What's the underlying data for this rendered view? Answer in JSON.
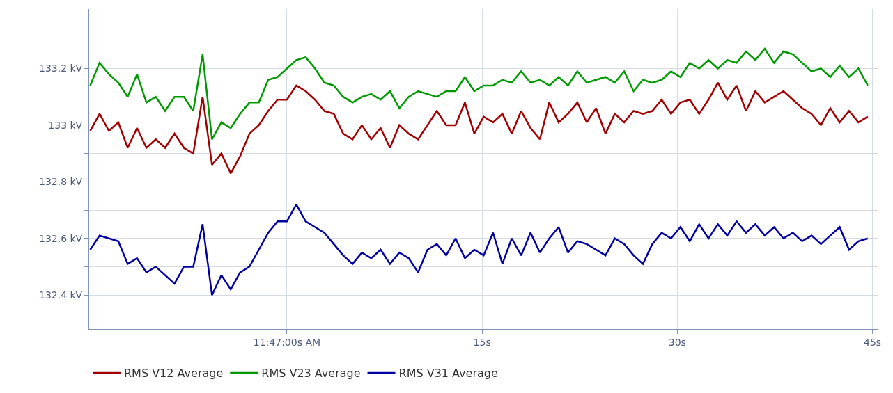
{
  "chart_data": {
    "type": "line",
    "x": [
      -15.12,
      -14.4,
      -13.68,
      -12.96,
      -12.24,
      -11.52,
      -10.8,
      -10.08,
      -9.36,
      -8.64,
      -7.92,
      -7.2,
      -6.48,
      -5.76,
      -5.04,
      -4.32,
      -3.6,
      -2.88,
      -2.16,
      -1.44,
      -0.72,
      0,
      0.72,
      1.44,
      2.16,
      2.88,
      3.6,
      4.32,
      5.04,
      5.76,
      6.48,
      7.2,
      7.92,
      8.64,
      9.36,
      10.08,
      10.8,
      11.52,
      12.24,
      12.96,
      13.68,
      14.4,
      15.12,
      15.84,
      16.56,
      17.28,
      18,
      18.72,
      19.44,
      20.16,
      20.88,
      21.6,
      22.32,
      23.04,
      23.76,
      24.48,
      25.2,
      25.92,
      26.64,
      27.36,
      28.08,
      28.8,
      29.52,
      30.24,
      30.96,
      31.68,
      32.4,
      33.12,
      33.84,
      34.56,
      35.28,
      36,
      36.72,
      37.44,
      38.16,
      38.88,
      39.6,
      40.32,
      41.04,
      41.76,
      42.48,
      43.2,
      43.92,
      44.64
    ],
    "series": [
      {
        "name": "RMS V12 Average",
        "color": "#a00000",
        "values": [
          132.98,
          133.04,
          132.98,
          133.01,
          132.92,
          132.99,
          132.92,
          132.95,
          132.92,
          132.97,
          132.92,
          132.9,
          133.1,
          132.86,
          132.9,
          132.83,
          132.89,
          132.97,
          133.0,
          133.05,
          133.09,
          133.09,
          133.14,
          133.12,
          133.09,
          133.05,
          133.04,
          132.97,
          132.95,
          133.0,
          132.95,
          132.99,
          132.92,
          133.0,
          132.97,
          132.95,
          133.0,
          133.05,
          133.0,
          133.0,
          133.08,
          132.97,
          133.03,
          133.01,
          133.04,
          132.97,
          133.05,
          132.99,
          132.95,
          133.08,
          133.01,
          133.04,
          133.08,
          133.01,
          133.06,
          132.97,
          133.04,
          133.01,
          133.05,
          133.04,
          133.05,
          133.09,
          133.04,
          133.08,
          133.09,
          133.04,
          133.09,
          133.15,
          133.09,
          133.14,
          133.05,
          133.12,
          133.08,
          133.1,
          133.12,
          133.09,
          133.06,
          133.04,
          133.0,
          133.06,
          133.01,
          133.05,
          133.01,
          133.03
        ]
      },
      {
        "name": "RMS V23 Average",
        "color": "#009900",
        "values": [
          133.14,
          133.22,
          133.18,
          133.15,
          133.1,
          133.18,
          133.08,
          133.1,
          133.05,
          133.1,
          133.1,
          133.05,
          133.25,
          132.95,
          133.01,
          132.99,
          133.04,
          133.08,
          133.08,
          133.16,
          133.17,
          133.2,
          133.23,
          133.24,
          133.2,
          133.15,
          133.14,
          133.1,
          133.08,
          133.1,
          133.11,
          133.09,
          133.12,
          133.06,
          133.1,
          133.12,
          133.11,
          133.1,
          133.12,
          133.12,
          133.17,
          133.12,
          133.14,
          133.14,
          133.16,
          133.15,
          133.19,
          133.15,
          133.16,
          133.14,
          133.17,
          133.14,
          133.19,
          133.15,
          133.16,
          133.17,
          133.15,
          133.19,
          133.12,
          133.16,
          133.15,
          133.16,
          133.19,
          133.17,
          133.22,
          133.2,
          133.23,
          133.2,
          133.23,
          133.22,
          133.26,
          133.23,
          133.27,
          133.22,
          133.26,
          133.25,
          133.22,
          133.19,
          133.2,
          133.17,
          133.21,
          133.17,
          133.2,
          133.14
        ]
      },
      {
        "name": "RMS V31 Average",
        "color": "#0000a0",
        "values": [
          132.56,
          132.61,
          132.6,
          132.59,
          132.51,
          132.53,
          132.48,
          132.5,
          132.47,
          132.44,
          132.5,
          132.5,
          132.65,
          132.4,
          132.47,
          132.42,
          132.48,
          132.5,
          132.56,
          132.62,
          132.66,
          132.66,
          132.72,
          132.66,
          132.64,
          132.62,
          132.58,
          132.54,
          132.51,
          132.55,
          132.53,
          132.56,
          132.51,
          132.55,
          132.53,
          132.48,
          132.56,
          132.58,
          132.54,
          132.6,
          132.53,
          132.56,
          132.54,
          132.62,
          132.51,
          132.6,
          132.54,
          132.62,
          132.55,
          132.6,
          132.64,
          132.55,
          132.59,
          132.58,
          132.56,
          132.54,
          132.6,
          132.58,
          132.54,
          132.51,
          132.58,
          132.62,
          132.6,
          132.64,
          132.59,
          132.65,
          132.6,
          132.65,
          132.61,
          132.66,
          132.62,
          132.65,
          132.61,
          132.64,
          132.6,
          132.62,
          132.59,
          132.61,
          132.58,
          132.61,
          132.64,
          132.56,
          132.59,
          132.6
        ]
      }
    ],
    "xlim": [
      -15.2,
      45.4
    ],
    "xticks": [
      {
        "value": 0,
        "label": "11:47:00s AM"
      },
      {
        "value": 15,
        "label": "15s"
      },
      {
        "value": 30,
        "label": "30s"
      },
      {
        "value": 45,
        "label": "45s"
      }
    ],
    "ylim": [
      132.28,
      133.41
    ],
    "yticks": [
      {
        "value": 132.3,
        "label": null
      },
      {
        "value": 132.4,
        "label": "132.4 kV"
      },
      {
        "value": 132.5,
        "label": null
      },
      {
        "value": 132.6,
        "label": "132.6 kV"
      },
      {
        "value": 132.7,
        "label": null
      },
      {
        "value": 132.8,
        "label": "132.8 kV"
      },
      {
        "value": 132.9,
        "label": null
      },
      {
        "value": 133.0,
        "label": "133 kV"
      },
      {
        "value": 133.1,
        "label": null
      },
      {
        "value": 133.2,
        "label": "133.2 kV"
      },
      {
        "value": 133.3,
        "label": null
      }
    ],
    "grid": true,
    "legend": "bottom",
    "marker": "none",
    "line_style": "solid"
  }
}
